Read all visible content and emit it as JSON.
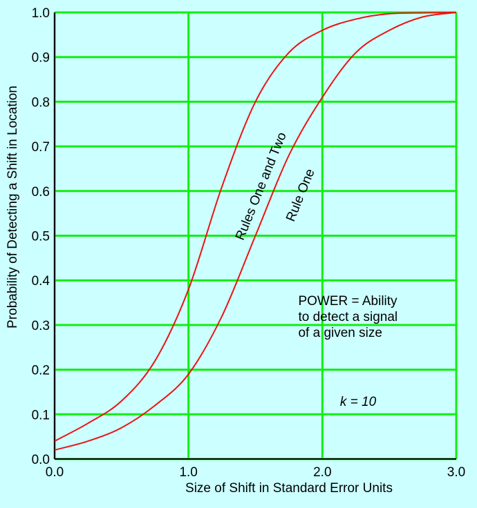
{
  "chart_data": {
    "type": "line",
    "xlabel": "Size of Shift in Standard Error Units",
    "ylabel": "Probability of Detecting a Shift in Location",
    "xlim": [
      0.0,
      3.0
    ],
    "ylim": [
      0.0,
      1.0
    ],
    "x_ticks": [
      0.0,
      1.0,
      2.0,
      3.0
    ],
    "x_tick_labels": [
      "0.0",
      "1.0",
      "2.0",
      "3.0"
    ],
    "y_ticks": [
      0.0,
      0.1,
      0.2,
      0.3,
      0.4,
      0.5,
      0.6,
      0.7,
      0.8,
      0.9,
      1.0
    ],
    "y_tick_labels": [
      "0.0",
      "0.1",
      "0.2",
      "0.3",
      "0.4",
      "0.5",
      "0.6",
      "0.7",
      "0.8",
      "0.9",
      "1.0"
    ],
    "grid": true,
    "series": [
      {
        "name": "Rules One and Two",
        "color": "#ee1111",
        "x": [
          0.0,
          0.25,
          0.5,
          0.75,
          1.0,
          1.25,
          1.5,
          1.75,
          2.0,
          2.25,
          2.5,
          2.75,
          3.0
        ],
        "y": [
          0.04,
          0.08,
          0.13,
          0.22,
          0.38,
          0.61,
          0.8,
          0.91,
          0.96,
          0.985,
          0.997,
          0.999,
          1.0
        ]
      },
      {
        "name": "Rule One",
        "color": "#ee1111",
        "x": [
          0.0,
          0.25,
          0.5,
          0.75,
          1.0,
          1.25,
          1.5,
          1.75,
          2.0,
          2.25,
          2.5,
          2.75,
          3.0
        ],
        "y": [
          0.02,
          0.04,
          0.07,
          0.12,
          0.19,
          0.32,
          0.5,
          0.68,
          0.81,
          0.91,
          0.96,
          0.99,
          1.0
        ]
      }
    ],
    "annotations": [
      {
        "id": "power",
        "lines": [
          "POWER = Ability",
          "to detect a signal",
          "of a given size"
        ],
        "x": 1.82,
        "y": 0.355
      },
      {
        "id": "k",
        "text": "k = 10",
        "x": 1.92,
        "y": 0.125
      }
    ],
    "colors": {
      "background": "#ccffff",
      "grid": "#11ee11",
      "axis": "#000000",
      "curve": "#ee1111"
    }
  }
}
